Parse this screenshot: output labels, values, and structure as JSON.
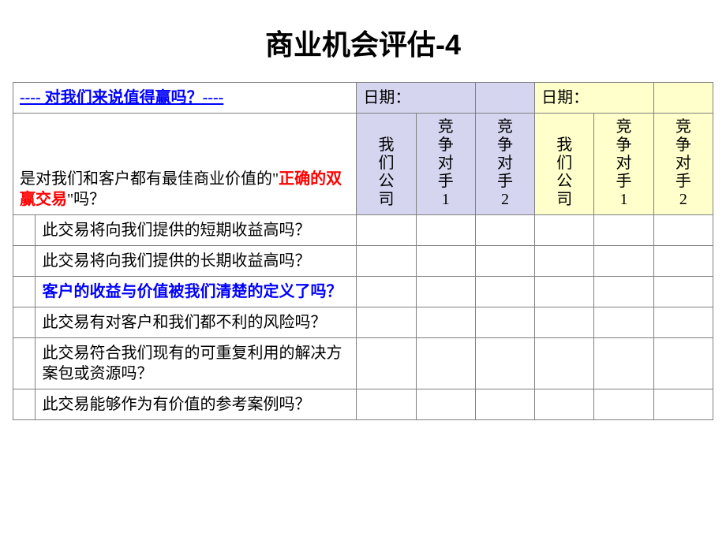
{
  "title": "商业机会评估-4",
  "header": {
    "question": "---- 对我们来说值得赢吗？----",
    "date_label": "日期"
  },
  "main_question": {
    "prefix": "是对我们和客户都有最佳商业价值的\"",
    "highlight": "正确的双赢交易",
    "suffix": "\"吗？"
  },
  "sub_headers": {
    "our_company": "我们公司",
    "competitor1": "竞争对手1",
    "competitor2": "竞争对手2"
  },
  "rows": [
    {
      "text": "此交易将向我们提供的短期收益高吗？",
      "blue": false
    },
    {
      "text": "此交易将向我们提供的长期收益高吗？",
      "blue": false
    },
    {
      "text": "客户的收益与价值被我们清楚的定义了吗？",
      "blue": true
    },
    {
      "text": "此交易有对客户和我们都不利的风险吗？",
      "blue": false
    },
    {
      "text": "此交易符合我们现有的可重复利用的解决方案包或资源吗？",
      "blue": false
    },
    {
      "text": "此交易能够作为有价值的参考案例吗？",
      "blue": false
    }
  ],
  "colors": {
    "lavender": "#d5d5f0",
    "yellow": "#ffffcc",
    "blue_text": "#0000ff",
    "red_text": "#ff0000",
    "border": "#808080"
  }
}
